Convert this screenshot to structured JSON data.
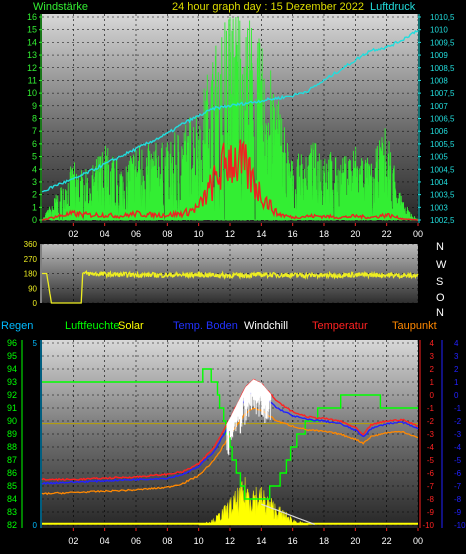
{
  "colors": {
    "wind": "#33ee33",
    "gust": "#ee2222",
    "pressure": "#22dddd",
    "direction": "#eeee22",
    "title": "#dddd00",
    "rain": "#00bbff",
    "humidity": "#00ff00",
    "solar": "#ffff00",
    "soil": "#2222ff",
    "windchill": "#ffffff",
    "temperature": "#ff2222",
    "dewpoint": "#ff8800"
  },
  "top": {
    "left_label": "Windstärke",
    "title": "24 hour graph day : 15 Dezember 2022",
    "right_label": "Luftdruck"
  },
  "middle": {
    "right_labels": [
      "N",
      "W",
      "S",
      "O",
      "N"
    ]
  },
  "bottom": {
    "legend": [
      "Regen",
      "Luftfeuchte",
      "Solar",
      "Temp. Boden",
      "Windchill",
      "Temperatur",
      "Taupunkt"
    ]
  },
  "chart_data": [
    {
      "type": "line",
      "name": "wind-pressure",
      "x_ticks": [
        "02",
        "04",
        "06",
        "08",
        "10",
        "12",
        "14",
        "16",
        "18",
        "20",
        "22",
        "00"
      ],
      "y_left_ticks": [
        "0",
        "1",
        "2",
        "3",
        "4",
        "5",
        "6",
        "7",
        "8",
        "9",
        "10",
        "11",
        "12",
        "13",
        "14",
        "15",
        "16"
      ],
      "y_right_ticks": [
        "1002,5",
        "1003",
        "1003,5",
        "1004",
        "1004,5",
        "1005",
        "1005,5",
        "1006",
        "1006,5",
        "1007",
        "1007,5",
        "1008",
        "1008,5",
        "1009",
        "1009,5",
        "1010",
        "1010,5"
      ],
      "ylim_left": [
        0,
        16
      ],
      "ylim_right": [
        1002.5,
        1010.5
      ],
      "xlim": [
        0,
        24
      ],
      "series": [
        {
          "key": "pressure",
          "axis": "right",
          "x": [
            0,
            1,
            2,
            3,
            4,
            5,
            6,
            7,
            8,
            9,
            10,
            11,
            12,
            13,
            14,
            15,
            16,
            17,
            18,
            19,
            20,
            21,
            22,
            23,
            24
          ],
          "values": [
            1003.6,
            1003.9,
            1004.1,
            1004.4,
            1004.7,
            1005.0,
            1005.3,
            1005.6,
            1005.9,
            1006.3,
            1006.6,
            1006.9,
            1007.0,
            1007.1,
            1007.2,
            1007.3,
            1007.4,
            1007.6,
            1008.0,
            1008.4,
            1008.8,
            1009.2,
            1009.3,
            1009.6,
            1010.0
          ]
        },
        {
          "key": "wind",
          "axis": "left",
          "x": [
            0,
            1,
            2,
            3,
            4,
            5,
            6,
            7,
            8,
            9,
            10,
            11,
            12,
            13,
            14,
            15,
            16,
            17,
            18,
            19,
            20,
            21,
            22,
            23,
            24
          ],
          "values": [
            0,
            1.5,
            3,
            2.5,
            4,
            3,
            4,
            4,
            4,
            5,
            6,
            9,
            12,
            11,
            9,
            7,
            3,
            4,
            4,
            3,
            4,
            3,
            5,
            1,
            0
          ]
        },
        {
          "key": "gust",
          "axis": "left",
          "x": [
            0,
            1,
            2,
            3,
            4,
            5,
            6,
            7,
            8,
            9,
            10,
            11,
            12,
            13,
            14,
            15,
            16,
            17,
            18,
            19,
            20,
            21,
            22,
            23,
            24
          ],
          "values": [
            0,
            0.3,
            0.5,
            0.4,
            0.4,
            0.3,
            0.5,
            0.4,
            0.4,
            0.5,
            1,
            3,
            5,
            4,
            2,
            0.5,
            0.2,
            0.3,
            0.3,
            0.2,
            0.3,
            0.2,
            0.4,
            0.1,
            0
          ]
        }
      ]
    },
    {
      "type": "line",
      "name": "wind-direction",
      "x_ticks": [
        "02",
        "04",
        "06",
        "08",
        "10",
        "12",
        "14",
        "16",
        "18",
        "20",
        "22",
        "00"
      ],
      "y_ticks": [
        "0",
        "90",
        "180",
        "270",
        "360"
      ],
      "ylim": [
        0,
        360
      ],
      "xlim": [
        0,
        24
      ],
      "series": [
        {
          "key": "direction",
          "x": [
            0,
            0.3,
            0.6,
            2.5,
            2.6,
            4,
            6,
            8,
            10,
            12,
            14,
            16,
            18,
            20,
            22,
            24
          ],
          "values": [
            180,
            180,
            0,
            0,
            180,
            175,
            172,
            170,
            172,
            168,
            172,
            170,
            168,
            172,
            170,
            165
          ]
        }
      ]
    },
    {
      "type": "line",
      "name": "temperature-humidity",
      "x_ticks": [
        "02",
        "04",
        "06",
        "08",
        "10",
        "12",
        "14",
        "16",
        "18",
        "20",
        "22",
        "00"
      ],
      "y_left_ticks": [
        "82",
        "83",
        "84",
        "85",
        "86",
        "87",
        "88",
        "89",
        "90",
        "91",
        "92",
        "93",
        "94",
        "95",
        "96"
      ],
      "y_right_ticks": [
        "-10",
        "-9",
        "-8",
        "-7",
        "-6",
        "-5",
        "-4",
        "-3",
        "-2",
        "-1",
        "0",
        "1",
        "2",
        "3",
        "4"
      ],
      "y_rain_ticks": [
        "0",
        "5"
      ],
      "ylim_left": [
        82,
        96
      ],
      "ylim_right": [
        -10,
        4
      ],
      "xlim": [
        0,
        24
      ],
      "series": [
        {
          "key": "humidity",
          "axis": "left",
          "x": [
            0,
            8,
            9,
            10,
            10.5,
            11,
            12,
            13,
            14,
            15,
            16,
            17,
            18,
            19,
            20,
            21,
            22,
            23,
            24
          ],
          "values": [
            93,
            93,
            93,
            93,
            94,
            93,
            88,
            84,
            84,
            85,
            88,
            90,
            91,
            91.5,
            92,
            92,
            91,
            91,
            91
          ]
        },
        {
          "key": "temperature",
          "axis": "right",
          "x": [
            0,
            2,
            4,
            6,
            8,
            9,
            10,
            11,
            12,
            13,
            13.5,
            14,
            15,
            16,
            17,
            18,
            19,
            20,
            20.5,
            21,
            22,
            23,
            24
          ],
          "values": [
            -6.5,
            -6.5,
            -6.4,
            -6.3,
            -6.1,
            -5.9,
            -5.3,
            -4.0,
            -1.8,
            0.6,
            1.2,
            0.9,
            -0.5,
            -1.3,
            -1.7,
            -1.8,
            -2.0,
            -2.5,
            -3.1,
            -2.3,
            -2.0,
            -1.9,
            -2.4
          ]
        },
        {
          "key": "soil",
          "axis": "right",
          "x": [
            0,
            2,
            4,
            6,
            8,
            9,
            10,
            11,
            12,
            13,
            13.5,
            14,
            15,
            16,
            17,
            18,
            19,
            20,
            20.5,
            21,
            22,
            23,
            24
          ],
          "values": [
            -6.8,
            -6.7,
            -6.6,
            -6.5,
            -6.4,
            -6.1,
            -5.5,
            -4.3,
            -2.2,
            -0.2,
            0.3,
            0.1,
            -1.0,
            -1.6,
            -1.9,
            -2.0,
            -2.2,
            -2.7,
            -3.2,
            -2.6,
            -2.2,
            -2.1,
            -2.6
          ]
        },
        {
          "key": "dewpoint",
          "axis": "right",
          "x": [
            0,
            2,
            4,
            6,
            8,
            9,
            10,
            11,
            12,
            13,
            13.5,
            14,
            15,
            16,
            17,
            18,
            19,
            20,
            20.5,
            21,
            22,
            23,
            24
          ],
          "values": [
            -7.6,
            -7.5,
            -7.4,
            -7.3,
            -7.1,
            -6.8,
            -6.2,
            -5.0,
            -3.1,
            -1.4,
            -1.0,
            -1.2,
            -2.0,
            -2.4,
            -2.7,
            -2.8,
            -3.0,
            -3.4,
            -3.7,
            -3.2,
            -2.9,
            -2.8,
            -3.3
          ]
        },
        {
          "key": "windchill",
          "axis": "right",
          "x": [
            11.8,
            12.2,
            12.6,
            13,
            13.4,
            13.8,
            14.2,
            14.6
          ],
          "values": [
            -3,
            -1.5,
            -0.5,
            0.5,
            0.8,
            0.5,
            -0.3,
            -1.2
          ]
        },
        {
          "key": "solar",
          "axis": "left",
          "x": [
            10,
            11,
            12,
            13,
            14,
            15,
            16,
            17
          ],
          "values": [
            82,
            82.4,
            83.5,
            84.7,
            84.2,
            83.2,
            82.4,
            82
          ]
        }
      ]
    }
  ]
}
